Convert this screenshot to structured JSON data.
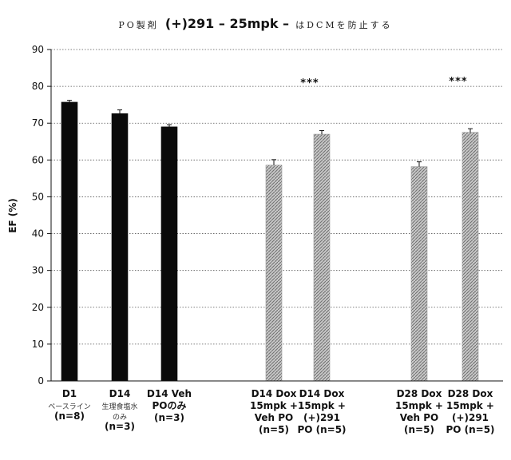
{
  "chart_data": {
    "type": "bar",
    "title": {
      "prefix": "PO製剤",
      "main": "(+)291 – 25mpk –",
      "suffix": "はDCMを防止する"
    },
    "ylabel": "EF (%)",
    "xlabel": "",
    "ylim": [
      0,
      90
    ],
    "yticks": [
      0,
      10,
      20,
      30,
      40,
      50,
      60,
      70,
      80,
      90
    ],
    "grid": true,
    "legend": "none",
    "colors": {
      "black": "#0a0a0a",
      "gray": "#9a9a9a"
    },
    "categories": [
      {
        "lines": [
          {
            "text": "D1",
            "style": "big"
          },
          {
            "text": "ベースライン",
            "style": "small"
          },
          {
            "text": "(n=8)",
            "style": "big"
          }
        ],
        "value": 75.7,
        "error": 0.5,
        "fill": "black",
        "sig": ""
      },
      {
        "lines": [
          {
            "text": "D14",
            "style": "big"
          },
          {
            "text": "生理食塩水",
            "style": "small"
          },
          {
            "text": "のみ",
            "style": "small"
          },
          {
            "text": "(n=3)",
            "style": "big"
          }
        ],
        "value": 72.6,
        "error": 1.0,
        "fill": "black",
        "sig": ""
      },
      {
        "lines": [
          {
            "text": "D14 Veh",
            "style": "big"
          },
          {
            "text": "POのみ",
            "style": "big"
          },
          {
            "text": "(n=3)",
            "style": "big"
          }
        ],
        "value": 69.0,
        "error": 0.6,
        "fill": "black",
        "sig": ""
      },
      {
        "lines": [
          {
            "text": "D14 Dox",
            "style": "big"
          },
          {
            "text": "15mpk +",
            "style": "big"
          },
          {
            "text": "Veh PO",
            "style": "big"
          },
          {
            "text": "(n=5)",
            "style": "big"
          }
        ],
        "value": 58.6,
        "error": 1.5,
        "fill": "gray",
        "sig": ""
      },
      {
        "lines": [
          {
            "text": "D14 Dox",
            "style": "big"
          },
          {
            "text": "15mpk +",
            "style": "big"
          },
          {
            "text": "(+)291",
            "style": "big"
          },
          {
            "text": "PO (n=5)",
            "style": "big"
          }
        ],
        "value": 67.0,
        "error": 1.0,
        "fill": "gray",
        "sig": "***"
      },
      {
        "lines": [
          {
            "text": "D28 Dox",
            "style": "big"
          },
          {
            "text": "15mpk +",
            "style": "big"
          },
          {
            "text": "Veh PO",
            "style": "big"
          },
          {
            "text": "(n=5)",
            "style": "big"
          }
        ],
        "value": 58.2,
        "error": 1.3,
        "fill": "gray",
        "sig": ""
      },
      {
        "lines": [
          {
            "text": "D28 Dox",
            "style": "big"
          },
          {
            "text": "15mpk +",
            "style": "big"
          },
          {
            "text": "(+)291",
            "style": "big"
          },
          {
            "text": "PO (n=5)",
            "style": "big"
          }
        ],
        "value": 67.5,
        "error": 1.0,
        "fill": "gray",
        "sig": "***"
      }
    ]
  }
}
